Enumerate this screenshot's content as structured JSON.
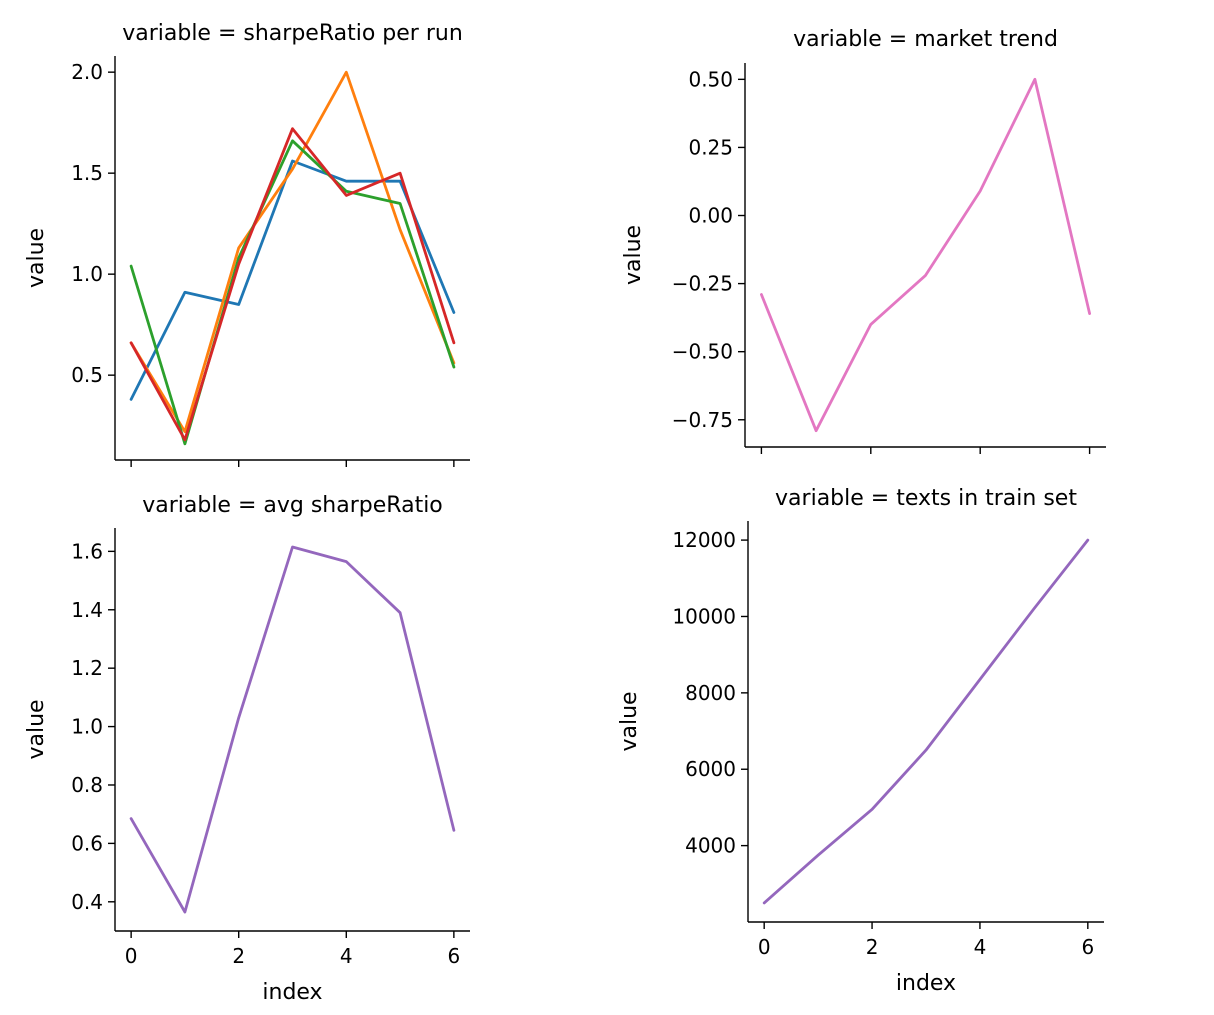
{
  "chart_data": [
    {
      "type": "line",
      "title": "variable = sharpeRatio per run",
      "xlabel": "",
      "ylabel": "value",
      "x": [
        0,
        1,
        2,
        3,
        4,
        5,
        6
      ],
      "xlim": [
        -0.3,
        6.3
      ],
      "ylim": [
        0.08,
        2.08
      ],
      "xticks": [
        0,
        2,
        4,
        6
      ],
      "xtick_labels_visible": false,
      "yticks": [
        0.5,
        1.0,
        1.5,
        2.0
      ],
      "ytick_labels": [
        "0.5",
        "1.0",
        "1.5",
        "2.0"
      ],
      "series": [
        {
          "color": "#1f77b4",
          "values": [
            0.38,
            0.91,
            0.85,
            1.56,
            1.46,
            1.46,
            0.81
          ]
        },
        {
          "color": "#ff7f0e",
          "values": [
            0.66,
            0.22,
            1.13,
            1.52,
            2.0,
            1.22,
            0.56
          ]
        },
        {
          "color": "#2ca02c",
          "values": [
            1.04,
            0.16,
            1.08,
            1.66,
            1.41,
            1.35,
            0.54
          ]
        },
        {
          "color": "#d62728",
          "values": [
            0.66,
            0.18,
            1.05,
            1.72,
            1.39,
            1.5,
            0.66
          ]
        }
      ],
      "grid": false
    },
    {
      "type": "line",
      "title": "variable = market trend",
      "xlabel": "",
      "ylabel": "value",
      "x": [
        0,
        1,
        2,
        3,
        4,
        5,
        6
      ],
      "xlim": [
        -0.3,
        6.3
      ],
      "ylim": [
        -0.85,
        0.56
      ],
      "xticks": [
        0,
        2,
        4,
        6
      ],
      "xtick_labels_visible": false,
      "yticks": [
        -0.75,
        -0.5,
        -0.25,
        0.0,
        0.25,
        0.5
      ],
      "ytick_labels": [
        "−0.75",
        "−0.50",
        "−0.25",
        "0.00",
        "0.25",
        "0.50"
      ],
      "series": [
        {
          "color": "#e377c2",
          "values": [
            -0.29,
            -0.79,
            -0.4,
            -0.22,
            0.09,
            0.5,
            -0.36
          ]
        }
      ],
      "grid": false
    },
    {
      "type": "line",
      "title": "variable = avg sharpeRatio",
      "xlabel": "index",
      "ylabel": "value",
      "x": [
        0,
        1,
        2,
        3,
        4,
        5,
        6
      ],
      "xlim": [
        -0.3,
        6.3
      ],
      "ylim": [
        0.3,
        1.68
      ],
      "xticks": [
        0,
        2,
        4,
        6
      ],
      "xtick_labels_visible": true,
      "xtick_labels": [
        "0",
        "2",
        "4",
        "6"
      ],
      "yticks": [
        0.4,
        0.6,
        0.8,
        1.0,
        1.2,
        1.4,
        1.6
      ],
      "ytick_labels": [
        "0.4",
        "0.6",
        "0.8",
        "1.0",
        "1.2",
        "1.4",
        "1.6"
      ],
      "series": [
        {
          "color": "#9467bd",
          "values": [
            0.685,
            0.365,
            1.03,
            1.615,
            1.565,
            1.39,
            0.645
          ]
        }
      ],
      "grid": false
    },
    {
      "type": "line",
      "title": "variable = texts in train set",
      "xlabel": "index",
      "ylabel": "value",
      "x": [
        0,
        1,
        2,
        3,
        4,
        5,
        6
      ],
      "xlim": [
        -0.3,
        6.3
      ],
      "ylim": [
        2000,
        12500
      ],
      "xticks": [
        0,
        2,
        4,
        6
      ],
      "xtick_labels_visible": true,
      "xtick_labels": [
        "0",
        "2",
        "4",
        "6"
      ],
      "yticks": [
        4000,
        6000,
        8000,
        10000,
        12000
      ],
      "ytick_labels": [
        "4000",
        "6000",
        "8000",
        "10000",
        "12000"
      ],
      "series": [
        {
          "color": "#9467bd",
          "values": [
            2500,
            3750,
            4950,
            6500,
            8350,
            10200,
            12000
          ]
        }
      ],
      "grid": false
    }
  ]
}
